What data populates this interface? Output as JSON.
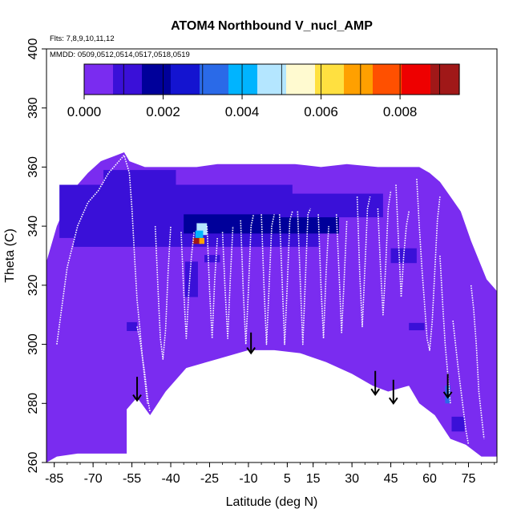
{
  "chart_data": {
    "type": "heatmap",
    "title": "ATOM4 Northbound V_nucl_AMP",
    "flights_note": "Flts: 7,8,9,10,11,12",
    "dates_note": "MMDD: 0509,0512,0514,0517,0518,0519",
    "xlabel": "Latitude (deg N)",
    "ylabel": "Theta (C)",
    "xlim": [
      -88,
      86
    ],
    "ylim": [
      260,
      400
    ],
    "x_ticks": [
      -85,
      -70,
      -55,
      -40,
      -25,
      -10,
      5,
      15,
      30,
      45,
      60,
      75
    ],
    "x_tick_labels": [
      "-85",
      "-70",
      "-55",
      "-40",
      "-25",
      "-10",
      "5",
      "15",
      "30",
      "45",
      "60",
      "75"
    ],
    "y_ticks": [
      260,
      280,
      300,
      320,
      340,
      360,
      380,
      400
    ],
    "y_tick_labels": [
      "260",
      "280",
      "300",
      "320",
      "340",
      "360",
      "380",
      "400"
    ],
    "colorbar": {
      "range": [
        0,
        0.0095
      ],
      "ticks": [
        0,
        0.002,
        0.004,
        0.006,
        0.008
      ],
      "tick_labels": [
        "0.000",
        "0.002",
        "0.004",
        "0.006",
        "0.008"
      ],
      "colors": [
        "#7a2cf0",
        "#3a10d8",
        "#00009a",
        "#1414d0",
        "#2a6ae8",
        "#00b4ff",
        "#b4e6ff",
        "#fffad0",
        "#ffe040",
        "#ffa000",
        "#ff5000",
        "#ee0000",
        "#a01818"
      ]
    },
    "background_value": 0.0003,
    "domain_top": [
      [
        -88,
        328
      ],
      [
        -84,
        340
      ],
      [
        -78,
        352
      ],
      [
        -72,
        358
      ],
      [
        -67,
        362
      ],
      [
        -61,
        364
      ],
      [
        -58,
        365
      ],
      [
        -56,
        362
      ],
      [
        -50,
        360
      ],
      [
        -44,
        360
      ],
      [
        -38,
        360
      ],
      [
        -30,
        360
      ],
      [
        -22,
        361
      ],
      [
        -12,
        361
      ],
      [
        -2,
        361
      ],
      [
        8,
        361
      ],
      [
        18,
        360
      ],
      [
        28,
        361
      ],
      [
        40,
        360
      ],
      [
        50,
        360
      ],
      [
        56,
        360
      ],
      [
        60,
        358
      ],
      [
        64,
        355
      ],
      [
        68,
        350
      ],
      [
        72,
        345
      ],
      [
        76,
        335
      ],
      [
        82,
        322
      ],
      [
        86,
        318
      ]
    ],
    "domain_bottom": [
      [
        -88,
        260
      ],
      [
        -84,
        262
      ],
      [
        -76,
        263
      ],
      [
        -62,
        263
      ],
      [
        -57,
        263
      ],
      [
        -57,
        278
      ],
      [
        -53,
        282
      ],
      [
        -48,
        276
      ],
      [
        -42,
        284
      ],
      [
        -34,
        292
      ],
      [
        -22,
        295
      ],
      [
        -10,
        298
      ],
      [
        0,
        298
      ],
      [
        10,
        297
      ],
      [
        20,
        294
      ],
      [
        30,
        290
      ],
      [
        38,
        286
      ],
      [
        44,
        284
      ],
      [
        52,
        286
      ],
      [
        56,
        280
      ],
      [
        62,
        276
      ],
      [
        68,
        268
      ],
      [
        74,
        266
      ],
      [
        80,
        262
      ],
      [
        84,
        262
      ],
      [
        86,
        262
      ]
    ],
    "cells": [
      {
        "x": -38,
        "y": 345,
        "w": 90,
        "h": 18,
        "v": 0.0012
      },
      {
        "x": -30,
        "y": 338,
        "w": 95,
        "h": 10,
        "v": 0.0013
      },
      {
        "x": -5,
        "y": 341,
        "w": 60,
        "h": 7,
        "v": 0.0016
      },
      {
        "x": -28,
        "y": 348,
        "w": 60,
        "h": 8,
        "v": 0.0011
      },
      {
        "x": 22,
        "y": 347,
        "w": 40,
        "h": 8,
        "v": 0.001
      },
      {
        "x": -52,
        "y": 356,
        "w": 28,
        "h": 6,
        "v": 0.0008
      },
      {
        "x": 50,
        "y": 330,
        "w": 10,
        "h": 5,
        "v": 0.0011
      },
      {
        "x": -32,
        "y": 322,
        "w": 5,
        "h": 12,
        "v": 0.0011
      },
      {
        "x": -24,
        "y": 329,
        "w": 6,
        "h": 2.5,
        "v": 0.0012
      },
      {
        "x": -28,
        "y": 339,
        "w": 4,
        "h": 4,
        "v": 0.0045
      },
      {
        "x": -29,
        "y": 337,
        "w": 3,
        "h": 3,
        "v": 0.0042
      },
      {
        "x": -30,
        "y": 335,
        "w": 3,
        "h": 2,
        "v": 0.009
      },
      {
        "x": -28,
        "y": 335,
        "w": 2,
        "h": 2,
        "v": 0.0068
      },
      {
        "x": -55,
        "y": 306,
        "w": 4,
        "h": 3,
        "v": 0.0011
      },
      {
        "x": 55,
        "y": 306,
        "w": 6,
        "h": 2.5,
        "v": 0.0011
      },
      {
        "x": 67,
        "y": 283,
        "w": 2,
        "h": 6,
        "v": 0.0036
      },
      {
        "x": 71,
        "y": 273,
        "w": 5,
        "h": 5,
        "v": 0.0011
      },
      {
        "x": 60,
        "y": 335,
        "w": 6,
        "h": 4,
        "v": 0.0007
      }
    ],
    "arrows": [
      {
        "x": -53,
        "y_top": 289,
        "y_tip": 281
      },
      {
        "x": -9,
        "y_top": 304,
        "y_tip": 297
      },
      {
        "x": 39,
        "y_top": 291,
        "y_tip": 283
      },
      {
        "x": 46,
        "y_top": 288,
        "y_tip": 280
      },
      {
        "x": 67,
        "y_top": 290,
        "y_tip": 282
      }
    ],
    "flight_tracks": [
      [
        [
          -84,
          300
        ],
        [
          -80,
          326
        ],
        [
          -76,
          340
        ],
        [
          -72,
          348
        ],
        [
          -68,
          352
        ],
        [
          -64,
          358
        ],
        [
          -60,
          362
        ],
        [
          -58,
          364
        ],
        [
          -56,
          358
        ],
        [
          -55,
          346
        ],
        [
          -54,
          330
        ],
        [
          -53,
          315
        ],
        [
          -52,
          306
        ],
        [
          -51,
          296
        ],
        [
          -50,
          288
        ],
        [
          -49,
          280
        ]
      ],
      [
        [
          -53,
          306
        ],
        [
          -52,
          302
        ],
        [
          -51,
          296
        ],
        [
          -50,
          290
        ],
        [
          -49,
          282
        ],
        [
          -48,
          277
        ]
      ],
      [
        [
          -46,
          340
        ],
        [
          -45,
          320
        ],
        [
          -44,
          302
        ],
        [
          -43,
          295
        ],
        [
          -42,
          305
        ],
        [
          -41,
          325
        ],
        [
          -40,
          340
        ]
      ],
      [
        [
          -36,
          338
        ],
        [
          -35,
          318
        ],
        [
          -34,
          302
        ],
        [
          -33,
          318
        ],
        [
          -32,
          330
        ],
        [
          -31,
          338
        ]
      ],
      [
        [
          -26,
          340
        ],
        [
          -25,
          318
        ],
        [
          -24,
          302
        ],
        [
          -23,
          322
        ],
        [
          -22,
          336
        ]
      ],
      [
        [
          -20,
          338
        ],
        [
          -19,
          318
        ],
        [
          -18,
          302
        ],
        [
          -17,
          322
        ],
        [
          -16,
          340
        ]
      ],
      [
        [
          -13,
          342
        ],
        [
          -12,
          318
        ],
        [
          -11,
          300
        ],
        [
          -10,
          318
        ],
        [
          -9,
          340
        ],
        [
          -8,
          344
        ]
      ],
      [
        [
          -5,
          344
        ],
        [
          -4,
          320
        ],
        [
          -3,
          300
        ],
        [
          -2,
          320
        ],
        [
          -1,
          340
        ],
        [
          0,
          344
        ]
      ],
      [
        [
          2,
          344
        ],
        [
          3,
          322
        ],
        [
          4,
          300
        ],
        [
          5,
          320
        ],
        [
          6,
          342
        ],
        [
          7,
          345
        ]
      ],
      [
        [
          9,
          345
        ],
        [
          10,
          322
        ],
        [
          11,
          300
        ],
        [
          12,
          322
        ],
        [
          13,
          344
        ],
        [
          14,
          346
        ]
      ],
      [
        [
          17,
          344
        ],
        [
          18,
          320
        ],
        [
          19,
          302
        ],
        [
          20,
          324
        ],
        [
          21,
          340
        ]
      ],
      [
        [
          24,
          344
        ],
        [
          25,
          324
        ],
        [
          26,
          304
        ],
        [
          27,
          322
        ],
        [
          28,
          342
        ]
      ],
      [
        [
          32,
          350
        ],
        [
          33,
          324
        ],
        [
          34,
          306
        ],
        [
          35,
          326
        ],
        [
          36,
          346
        ],
        [
          37,
          350
        ]
      ],
      [
        [
          40,
          346
        ],
        [
          41,
          326
        ],
        [
          42,
          310
        ],
        [
          43,
          326
        ],
        [
          44,
          346
        ],
        [
          45,
          352
        ]
      ],
      [
        [
          47,
          354
        ],
        [
          48,
          334
        ],
        [
          49,
          316
        ],
        [
          50,
          330
        ],
        [
          51,
          340
        ],
        [
          52,
          345
        ]
      ],
      [
        [
          55,
          356
        ],
        [
          56,
          340
        ],
        [
          57,
          326
        ],
        [
          58,
          314
        ],
        [
          59,
          302
        ],
        [
          60,
          298
        ],
        [
          61,
          308
        ],
        [
          62,
          325
        ],
        [
          63,
          342
        ],
        [
          64,
          350
        ]
      ],
      [
        [
          64,
          330
        ],
        [
          65,
          314
        ],
        [
          66,
          300
        ],
        [
          67,
          290
        ],
        [
          68,
          280
        ]
      ],
      [
        [
          69,
          308
        ],
        [
          70,
          300
        ],
        [
          71,
          292
        ],
        [
          72,
          285
        ],
        [
          73,
          278
        ],
        [
          74,
          271
        ],
        [
          75,
          266
        ]
      ],
      [
        [
          76,
          320
        ],
        [
          77,
          312
        ],
        [
          78,
          300
        ],
        [
          79,
          284
        ],
        [
          80,
          276
        ],
        [
          81,
          268
        ]
      ]
    ]
  }
}
